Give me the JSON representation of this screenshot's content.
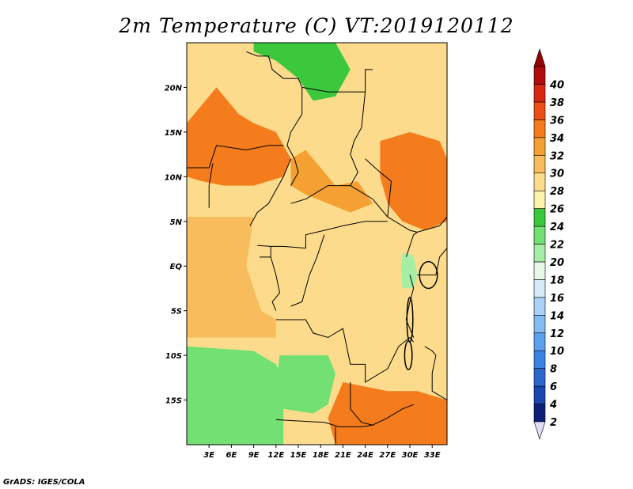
{
  "title": "2m Temperature (C) VT:2019120112",
  "footer": "GrADS: IGES/COLA",
  "map": {
    "lon_range": [
      0,
      35
    ],
    "lat_range": [
      -20,
      25
    ],
    "lon_ticks": [
      {
        "value": 3,
        "label": "3E"
      },
      {
        "value": 6,
        "label": "6E"
      },
      {
        "value": 9,
        "label": "9E"
      },
      {
        "value": 12,
        "label": "12E"
      },
      {
        "value": 15,
        "label": "15E"
      },
      {
        "value": 18,
        "label": "18E"
      },
      {
        "value": 21,
        "label": "21E"
      },
      {
        "value": 24,
        "label": "24E"
      },
      {
        "value": 27,
        "label": "27E"
      },
      {
        "value": 30,
        "label": "30E"
      },
      {
        "value": 33,
        "label": "33E"
      }
    ],
    "lat_ticks": [
      {
        "value": 20,
        "label": "20N"
      },
      {
        "value": 15,
        "label": "15N"
      },
      {
        "value": 10,
        "label": "10N"
      },
      {
        "value": 5,
        "label": "5N"
      },
      {
        "value": 0,
        "label": "EQ"
      },
      {
        "value": -5,
        "label": "5S"
      },
      {
        "value": -10,
        "label": "10S"
      },
      {
        "value": -15,
        "label": "15S"
      }
    ]
  },
  "colorbar": {
    "levels": [
      2,
      4,
      6,
      8,
      10,
      12,
      14,
      16,
      18,
      20,
      22,
      24,
      26,
      28,
      30,
      32,
      34,
      36,
      38,
      40
    ],
    "colors": [
      "#0f1f78",
      "#1b46b0",
      "#2a66cc",
      "#3c82e0",
      "#5aa0ec",
      "#82bcf2",
      "#aad2f6",
      "#d4ecfa",
      "#e6f8e6",
      "#a6eea6",
      "#72e072",
      "#3cc83c",
      "#fcf4a8",
      "#fcdc8c",
      "#f8bc5c",
      "#f4a032",
      "#f47c1c",
      "#ec5018",
      "#d82814",
      "#b00c0c"
    ],
    "below_color": "#e0dcf4",
    "above_color": "#960000"
  },
  "temperature_regions": [
    {
      "region": "background",
      "value": 28
    },
    {
      "region": "southwest-coast",
      "value": 23
    },
    {
      "region": "angola-plateau",
      "value": 23
    },
    {
      "region": "east-africa-highlands",
      "value": 21
    },
    {
      "region": "sahara-north",
      "value": 24
    },
    {
      "region": "sahel-west",
      "value": 34
    },
    {
      "region": "chad-sudan",
      "value": 32
    },
    {
      "region": "south-sudan",
      "value": 34
    },
    {
      "region": "zambia-south",
      "value": 34
    },
    {
      "region": "gulf-of-guinea",
      "value": 30
    }
  ]
}
